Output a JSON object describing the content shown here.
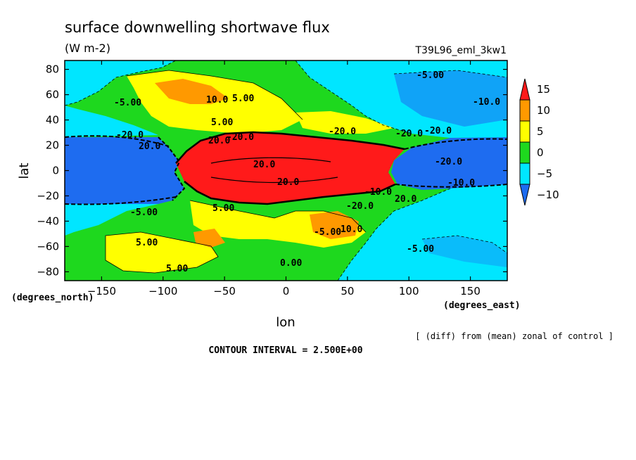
{
  "chart_data": {
    "type": "heatmap",
    "title": "surface downwelling shortwave flux",
    "units": "(W m-2)",
    "run_name": "T39L96_eml_3kw1",
    "xlabel": "lon",
    "ylabel": "lat",
    "x_units_label": "(degrees_east)",
    "y_units_label": "(degrees_north)",
    "xlim": [
      -180,
      180
    ],
    "ylim": [
      -87,
      87
    ],
    "x_ticks": [
      -150,
      -100,
      -50,
      0,
      50,
      100,
      150
    ],
    "y_ticks": [
      80,
      60,
      40,
      20,
      0,
      -20,
      -40,
      -60,
      -80
    ],
    "x_tick_labels": [
      "−150",
      "−100",
      "−50",
      "0",
      "50",
      "100",
      "150"
    ],
    "y_tick_labels": [
      "80",
      "60",
      "40",
      "20",
      "0",
      "−20",
      "−40",
      "−60",
      "−80"
    ],
    "colorbar": {
      "levels": [
        -10,
        -5,
        0,
        5,
        10,
        15
      ],
      "labels": [
        "−10",
        "−5",
        "0",
        "5",
        "10",
        "15"
      ],
      "colors": [
        "#1e6cf0",
        "#00e6ff",
        "#1ed81e",
        "#ffff00",
        "#ff9900",
        "#ff1a1a"
      ]
    },
    "contour_labels": [
      "-5.00",
      "5.00",
      "10.0",
      "-10.0",
      "-20.0",
      "20.0",
      "-20.0",
      "20.0",
      "-20.0",
      "-20.0",
      "-20.0",
      "20.0",
      "-20.0",
      "-10.0",
      "-5.00",
      "-5.00",
      "5.00",
      "20.0",
      "-10.0",
      "-20.0",
      "20.0",
      "10.0",
      "5.00",
      "5.00",
      "-5.00",
      "0.00",
      "5.00",
      "-5.00"
    ],
    "footnote": "[ (diff) from (mean) zonal of control ]",
    "contour_interval": "CONTOUR INTERVAL = 2.500E+00"
  }
}
